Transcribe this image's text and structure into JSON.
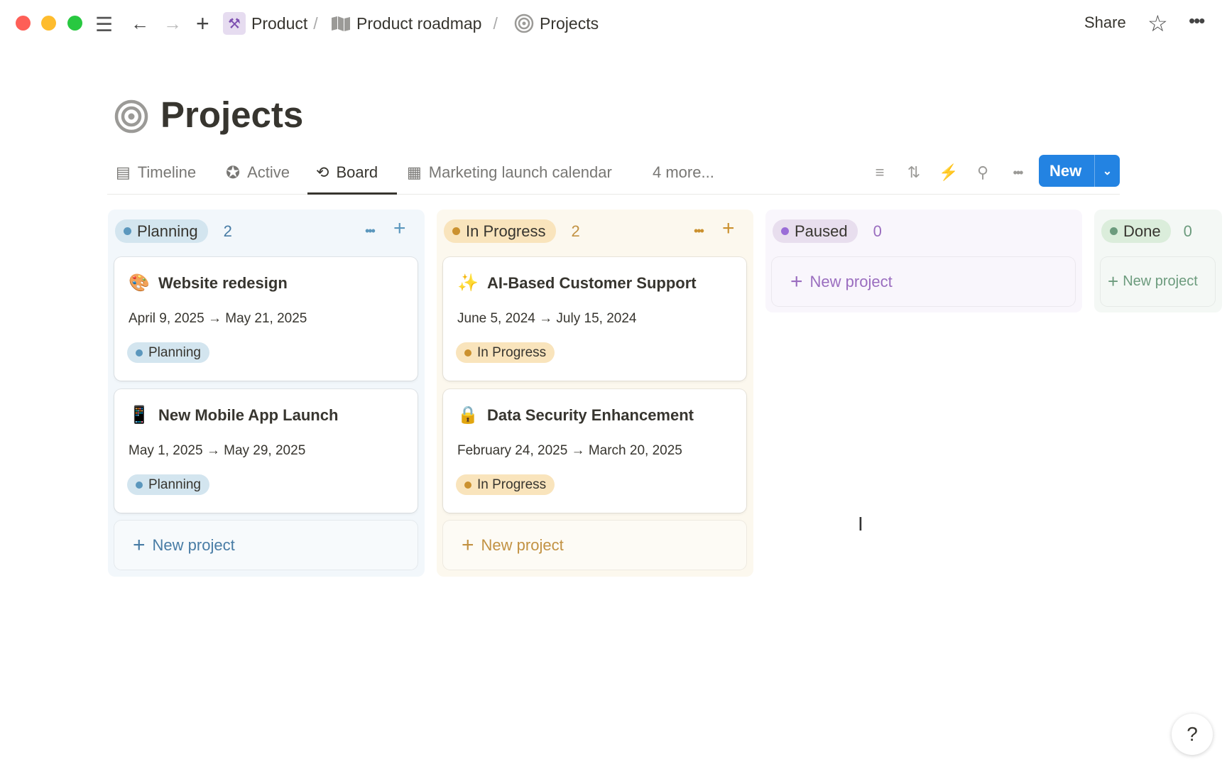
{
  "window": {
    "controls": [
      "close",
      "minimize",
      "maximize"
    ]
  },
  "breadcrumb": [
    {
      "label": "Product",
      "icon": "hammer-icon"
    },
    {
      "label": "Product roadmap",
      "icon": "map-icon"
    },
    {
      "label": "Projects",
      "icon": "target-icon"
    }
  ],
  "topbar": {
    "share": "Share"
  },
  "page": {
    "title": "Projects",
    "icon": "target-icon"
  },
  "tabs": [
    {
      "label": "Timeline",
      "icon": "timeline-icon"
    },
    {
      "label": "Active",
      "icon": "star-circle-icon"
    },
    {
      "label": "Board",
      "icon": "board-icon",
      "active": true
    },
    {
      "label": "Marketing launch calendar",
      "icon": "calendar-icon"
    },
    {
      "label": "4 more..."
    }
  ],
  "toolbar": {
    "new_label": "New",
    "accent": "#2383e2"
  },
  "columns": [
    {
      "label": "Planning",
      "count": "2",
      "bg": "#f2f7fb",
      "pill": "#d3e5ef",
      "dot": "#5b97bd",
      "text": "#487ca5",
      "cards": [
        {
          "emoji": "🎨",
          "title": "Website redesign",
          "dates": "April 9, 2025 → May 21, 2025",
          "status": "Planning"
        },
        {
          "emoji": "📱",
          "title": "New Mobile App Launch",
          "dates": "May 1, 2025 → May 29, 2025",
          "status": "Planning"
        }
      ],
      "new_label": "New project"
    },
    {
      "label": "In Progress",
      "count": "2",
      "bg": "#fcf8ee",
      "pill": "#f9e4bc",
      "dot": "#cb912f",
      "text": "#c29243",
      "cards": [
        {
          "emoji": "✨",
          "title": "AI-Based Customer Support",
          "dates": "June 5, 2024 → July 15, 2024",
          "status": "In Progress"
        },
        {
          "emoji": "🔒",
          "title": "Data Security Enhancement",
          "dates": "February 24, 2025 → March 20, 2025",
          "status": "In Progress"
        }
      ],
      "new_label": "New project"
    },
    {
      "label": "Paused",
      "count": "0",
      "bg": "#f9f6fc",
      "pill": "#e8deee",
      "dot": "#9a6dd7",
      "text": "#9a6dbf",
      "cards": [],
      "new_label": "New project"
    },
    {
      "label": "Done",
      "count": "0",
      "bg": "#f4f8f5",
      "pill": "#dbeddb",
      "dot": "#6c9b7d",
      "text": "#6c9b7d",
      "cards": [],
      "new_label": "New project"
    }
  ]
}
